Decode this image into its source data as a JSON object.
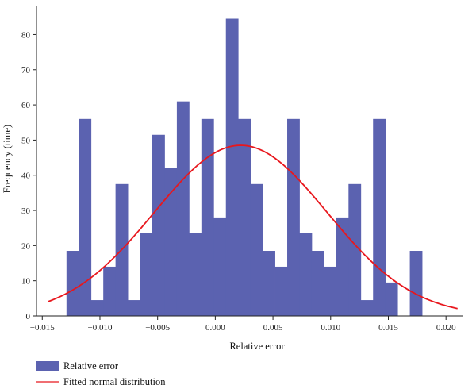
{
  "chart_data": {
    "type": "bar",
    "xlabel": "Relative error",
    "ylabel": "Frequency (time)",
    "xlim": [
      -0.0155,
      0.0215
    ],
    "ylim": [
      0,
      88
    ],
    "x_ticks": [
      -0.015,
      -0.01,
      -0.005,
      0.0,
      0.005,
      0.01,
      0.015,
      0.02
    ],
    "x_tick_labels": [
      "−0.015",
      "−0.010",
      "−0.005",
      "0.000",
      "0.005",
      "0.010",
      "0.015",
      "0.020"
    ],
    "y_ticks": [
      0,
      10,
      20,
      30,
      40,
      50,
      60,
      70,
      80
    ],
    "y_tick_labels": [
      "0",
      "10",
      "20",
      "30",
      "40",
      "50",
      "60",
      "70",
      "80"
    ],
    "bin_start": -0.0129,
    "bin_width": 0.001063,
    "series": [
      {
        "name": "Relative error",
        "color": "#5b62b0",
        "kind": "histogram",
        "values": [
          18.5,
          56,
          4.5,
          14,
          37.5,
          4.5,
          23.5,
          51.5,
          42,
          61,
          23.5,
          56,
          28,
          84.5,
          56,
          37.5,
          18.5,
          14,
          56,
          23.5,
          18.5,
          14,
          28,
          37.5,
          4.5,
          56,
          9.5,
          0,
          18.5
        ]
      },
      {
        "name": "Fitted normal distribution",
        "color": "#e8171d",
        "kind": "curve",
        "mean": 0.0022,
        "sd": 0.0075,
        "peak": 48.5,
        "x_range": [
          -0.0145,
          0.021
        ]
      }
    ],
    "legend": {
      "position": "bottom-left",
      "items": [
        {
          "label": "Relative error",
          "color": "#5b62b0",
          "symbol": "patch"
        },
        {
          "label": "Fitted normal distribution",
          "color": "#e8171d",
          "symbol": "line"
        }
      ]
    }
  }
}
